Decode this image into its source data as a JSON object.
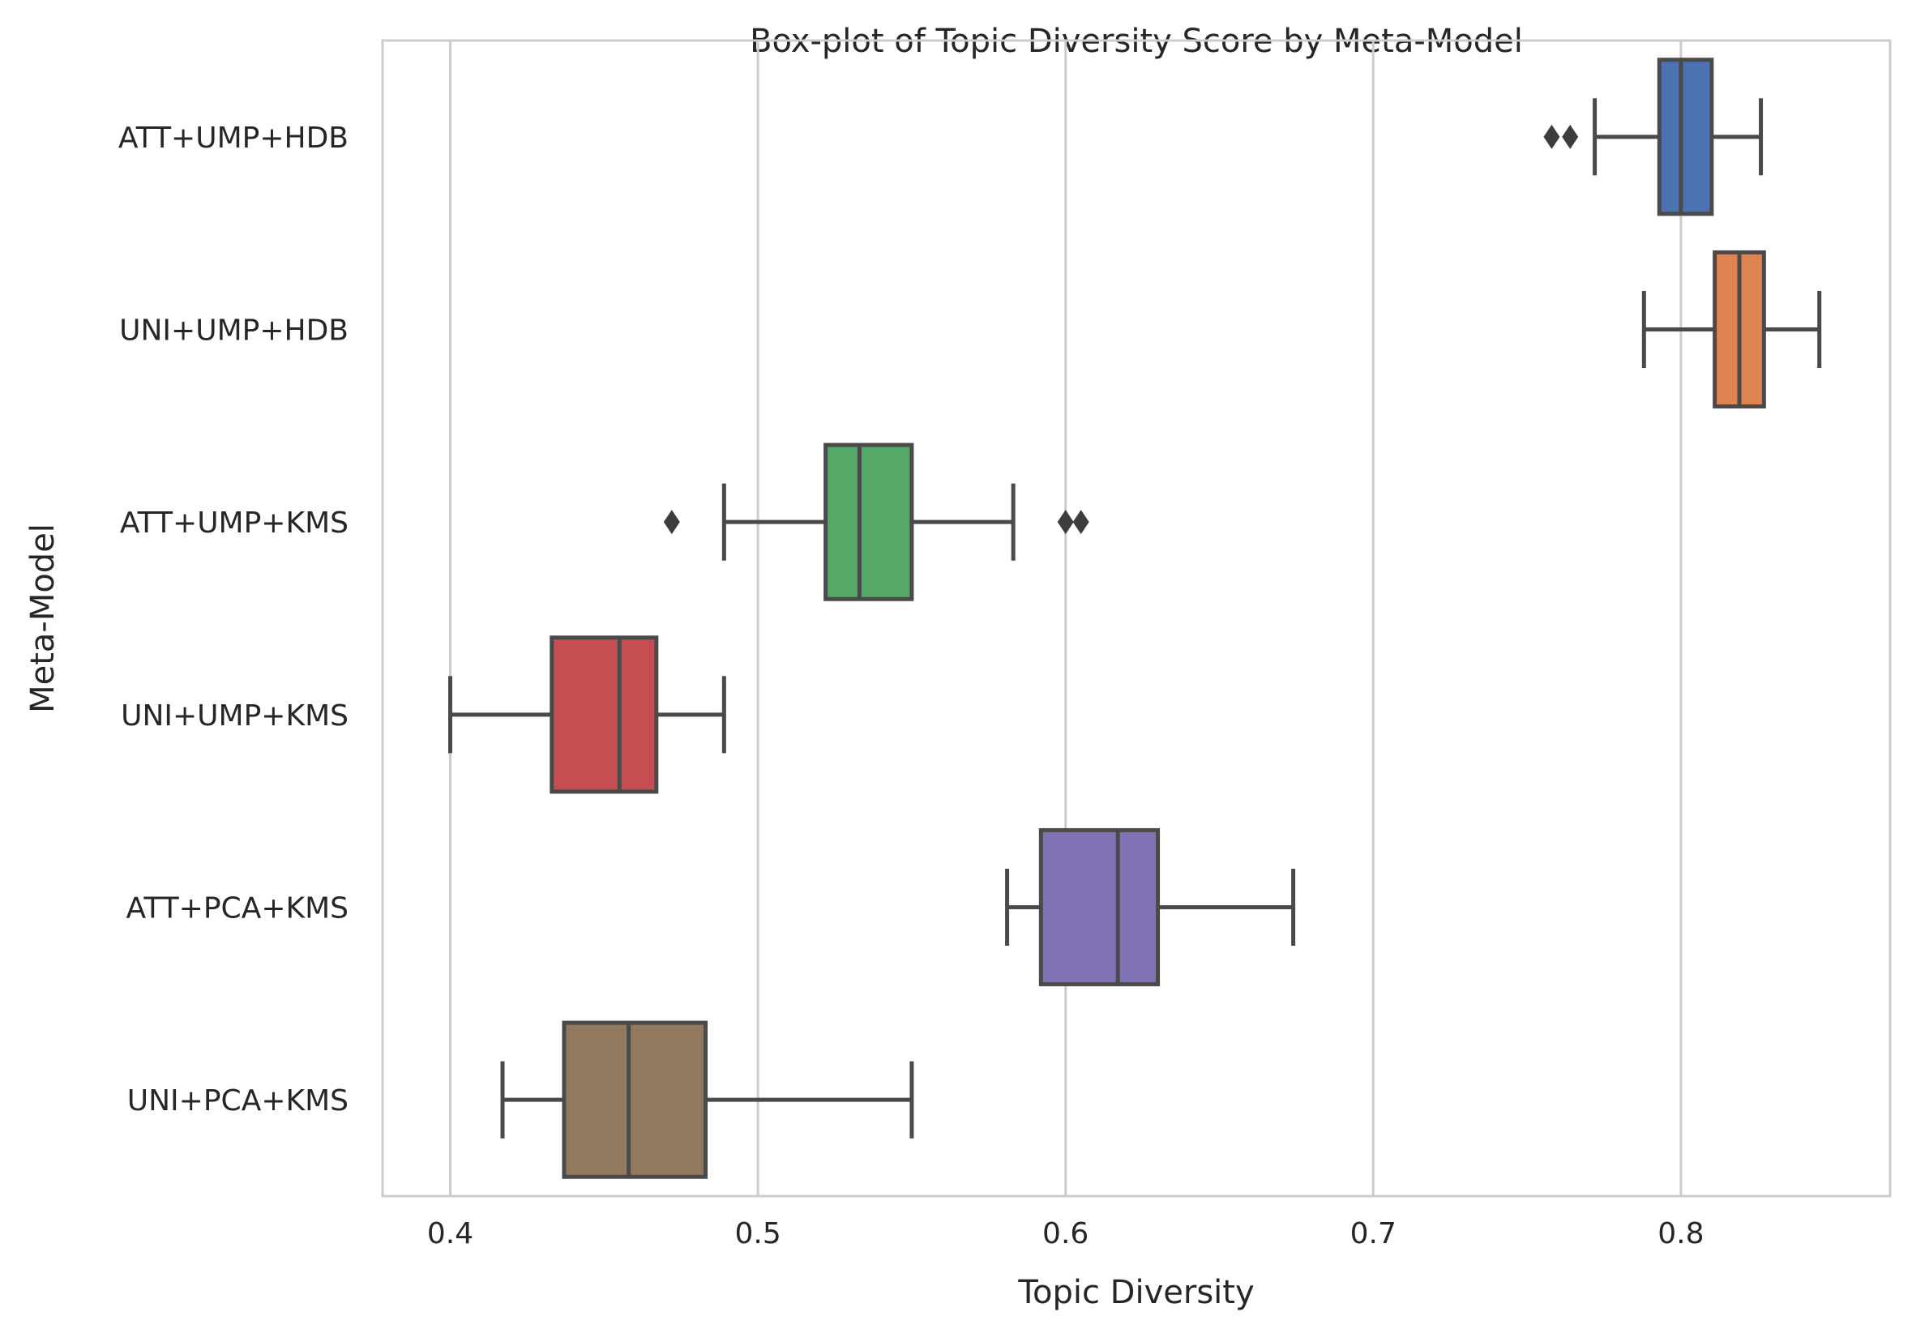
{
  "chart_data": {
    "type": "boxplot",
    "orientation": "horizontal",
    "title": "Box-plot of Topic Diversity Score by Meta-Model",
    "xlabel": "Topic Diversity",
    "ylabel": "Meta-Model",
    "xlim": [
      0.378,
      0.868
    ],
    "xticks": [
      0.4,
      0.5,
      0.6,
      0.7,
      0.8
    ],
    "xtick_labels": [
      "0.4",
      "0.5",
      "0.6",
      "0.7",
      "0.8"
    ],
    "grid": "vertical",
    "categories": [
      "ATT+UMP+HDB",
      "UNI+UMP+HDB",
      "ATT+UMP+KMS",
      "UNI+UMP+KMS",
      "ATT+PCA+KMS",
      "UNI+PCA+KMS"
    ],
    "boxes": [
      {
        "category": "ATT+UMP+HDB",
        "color": "#4c72b0",
        "whisker_low": 0.772,
        "q1": 0.793,
        "median": 0.8,
        "q3": 0.81,
        "whisker_high": 0.826,
        "outliers": [
          0.758,
          0.764
        ]
      },
      {
        "category": "UNI+UMP+HDB",
        "color": "#dd8452",
        "whisker_low": 0.788,
        "q1": 0.811,
        "median": 0.819,
        "q3": 0.827,
        "whisker_high": 0.845,
        "outliers": []
      },
      {
        "category": "ATT+UMP+KMS",
        "color": "#55a868",
        "whisker_low": 0.489,
        "q1": 0.522,
        "median": 0.533,
        "q3": 0.55,
        "whisker_high": 0.583,
        "outliers": [
          0.472,
          0.6,
          0.605
        ]
      },
      {
        "category": "UNI+UMP+KMS",
        "color": "#c44e52",
        "whisker_low": 0.4,
        "q1": 0.433,
        "median": 0.455,
        "q3": 0.467,
        "whisker_high": 0.489,
        "outliers": []
      },
      {
        "category": "ATT+PCA+KMS",
        "color": "#8172b3",
        "whisker_low": 0.581,
        "q1": 0.592,
        "median": 0.617,
        "q3": 0.63,
        "whisker_high": 0.674,
        "outliers": []
      },
      {
        "category": "UNI+PCA+KMS",
        "color": "#937860",
        "whisker_low": 0.417,
        "q1": 0.437,
        "median": 0.458,
        "q3": 0.483,
        "whisker_high": 0.55,
        "outliers": []
      }
    ]
  }
}
